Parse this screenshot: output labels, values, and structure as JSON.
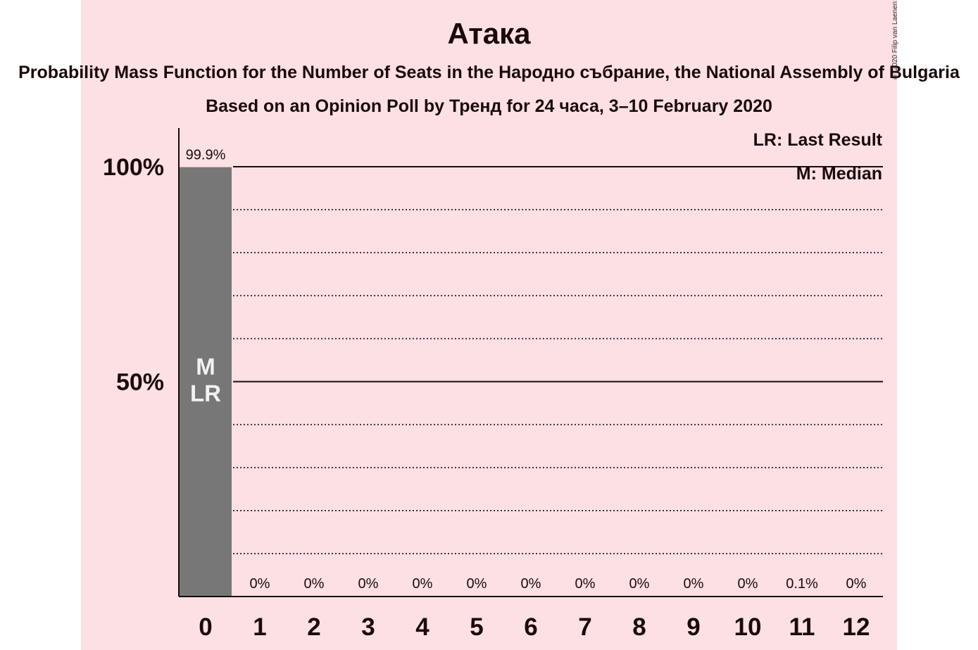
{
  "page": {
    "title": "Атака",
    "subtitle": "Probability Mass Function for the Number of Seats in the Народно събрание, the National Assembly of Bulgaria",
    "subtitle2": "Based on an Opinion Poll by Тренд for 24 часа, 3–10 February 2020",
    "copyright": "© 2020 Filip van Laenen",
    "legend_lr": "LR: Last Result",
    "legend_m": "M: Median"
  },
  "colors": {
    "background": "#fde0e4",
    "bar": "#777777",
    "bar_label": "#f2f2f2",
    "axis": "#1a0a0a"
  },
  "chart_data": {
    "type": "bar",
    "title": "Атака",
    "categories": [
      "0",
      "1",
      "2",
      "3",
      "4",
      "5",
      "6",
      "7",
      "8",
      "9",
      "10",
      "11",
      "12"
    ],
    "values": [
      99.9,
      0,
      0,
      0,
      0,
      0,
      0,
      0,
      0,
      0,
      0,
      0.1,
      0
    ],
    "value_labels": [
      "99.9%",
      "0%",
      "0%",
      "0%",
      "0%",
      "0%",
      "0%",
      "0%",
      "0%",
      "0%",
      "0%",
      "0.1%",
      "0%"
    ],
    "ylim": [
      0,
      110
    ],
    "yticks": [
      {
        "value": 50,
        "label": "50%"
      },
      {
        "value": 100,
        "label": "100%"
      }
    ],
    "minor_gridlines": [
      10,
      20,
      30,
      40,
      60,
      70,
      80,
      90
    ],
    "median_seat": "0",
    "last_result_seat": "0",
    "bar_marker_labels": [
      "M",
      "LR"
    ],
    "grid": true,
    "legend_position": "top-right"
  }
}
